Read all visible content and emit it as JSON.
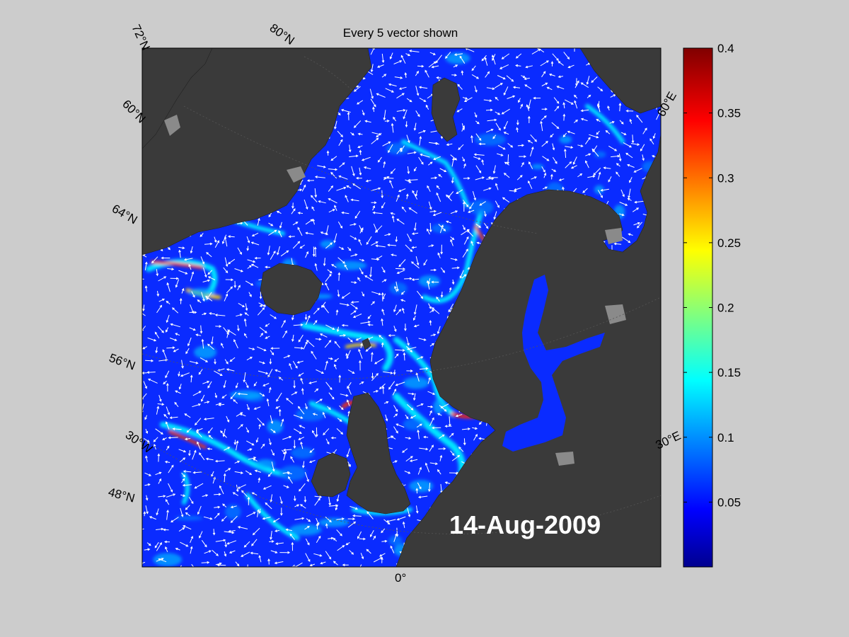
{
  "figure": {
    "title": "Every 5 vector shown",
    "date": "14-Aug-2009"
  },
  "map": {
    "region": "North Atlantic / Nordic Seas",
    "colors": {
      "background": "#cccccc",
      "land": "#3a3a3a",
      "sea_ice": "#8a8a8a",
      "ocean_low": "#0a2bff",
      "arrows": "#ffffff"
    },
    "lat_labels": [
      {
        "text": "72°N"
      },
      {
        "text": "60°N"
      },
      {
        "text": "64°N"
      },
      {
        "text": "56°N"
      },
      {
        "text": "48°N"
      }
    ],
    "lon_labels": [
      {
        "text": "80°N"
      },
      {
        "text": "60°E"
      },
      {
        "text": "30°W"
      },
      {
        "text": "30°E"
      },
      {
        "text": "0°"
      }
    ]
  },
  "colorbar": {
    "colormap": "jet",
    "min": 0,
    "max": 0.4,
    "ticks": [
      "0.4",
      "0.35",
      "0.3",
      "0.25",
      "0.2",
      "0.15",
      "0.1",
      "0.05"
    ],
    "tick_values": [
      0.4,
      0.35,
      0.3,
      0.25,
      0.2,
      0.15,
      0.1,
      0.05
    ]
  }
}
